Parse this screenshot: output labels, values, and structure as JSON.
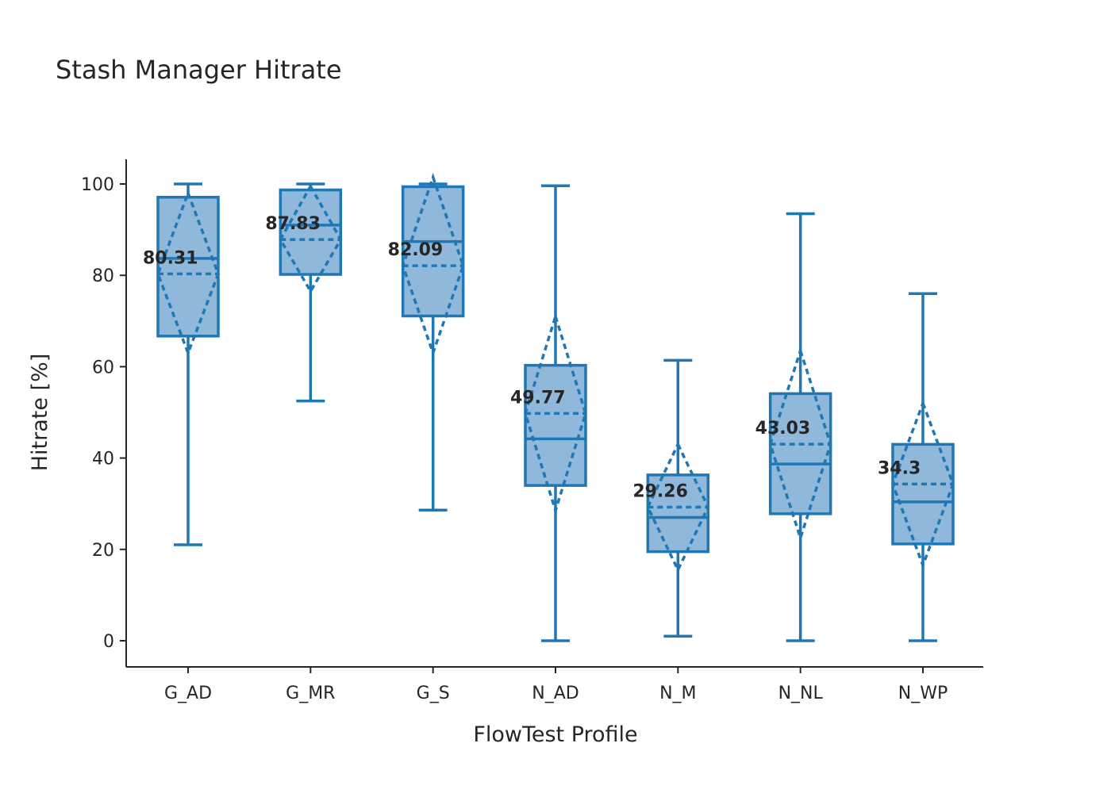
{
  "chart_data": {
    "type": "box",
    "title": "Stash Manager Hitrate",
    "xlabel": "FlowTest Profile",
    "ylabel": "Hitrate [%]",
    "ylim": [
      -5.8,
      105.5
    ],
    "yticks": [
      0,
      20,
      40,
      60,
      80,
      100
    ],
    "categories": [
      "G_AD",
      "G_MR",
      "G_S",
      "N_AD",
      "N_M",
      "N_NL",
      "N_WP"
    ],
    "boxes": [
      {
        "category": "G_AD",
        "whisker_low": 21,
        "q1": 66.7,
        "median": 83.7,
        "q3": 97.1,
        "whisker_high": 100,
        "mean": 80.31,
        "mean_minus_sd": 63,
        "mean_plus_sd": 98,
        "mean_label": "80.31"
      },
      {
        "category": "G_MR",
        "whisker_low": 52.5,
        "q1": 80.2,
        "median": 91,
        "q3": 98.7,
        "whisker_high": 100,
        "mean": 87.83,
        "mean_minus_sd": 76.5,
        "mean_plus_sd": 99.5,
        "mean_label": "87.83"
      },
      {
        "category": "G_S",
        "whisker_low": 28.6,
        "q1": 71.1,
        "median": 87.4,
        "q3": 99.4,
        "whisker_high": 100,
        "mean": 82.09,
        "mean_minus_sd": 63,
        "mean_plus_sd": 101.5,
        "mean_label": "82.09"
      },
      {
        "category": "N_AD",
        "whisker_low": 0,
        "q1": 34,
        "median": 44.2,
        "q3": 60.3,
        "whisker_high": 99.6,
        "mean": 49.77,
        "mean_minus_sd": 28.5,
        "mean_plus_sd": 71,
        "mean_label": "49.77"
      },
      {
        "category": "N_M",
        "whisker_low": 1,
        "q1": 19.5,
        "median": 27,
        "q3": 36.3,
        "whisker_high": 61.4,
        "mean": 29.26,
        "mean_minus_sd": 15.5,
        "mean_plus_sd": 43,
        "mean_label": "29.26"
      },
      {
        "category": "N_NL",
        "whisker_low": 0,
        "q1": 27.8,
        "median": 38.7,
        "q3": 54.1,
        "whisker_high": 93.5,
        "mean": 43.03,
        "mean_minus_sd": 22.5,
        "mean_plus_sd": 63.5,
        "mean_label": "43.03"
      },
      {
        "category": "N_WP",
        "whisker_low": 0,
        "q1": 21.2,
        "median": 30.4,
        "q3": 43,
        "whisker_high": 76,
        "mean": 34.3,
        "mean_minus_sd": 16.5,
        "mean_plus_sd": 52,
        "mean_label": "34.3"
      }
    ],
    "colors": {
      "box_fill": "#8fb8db",
      "stroke": "#1f77b4",
      "text": "#262626",
      "axis": "#262626"
    }
  }
}
